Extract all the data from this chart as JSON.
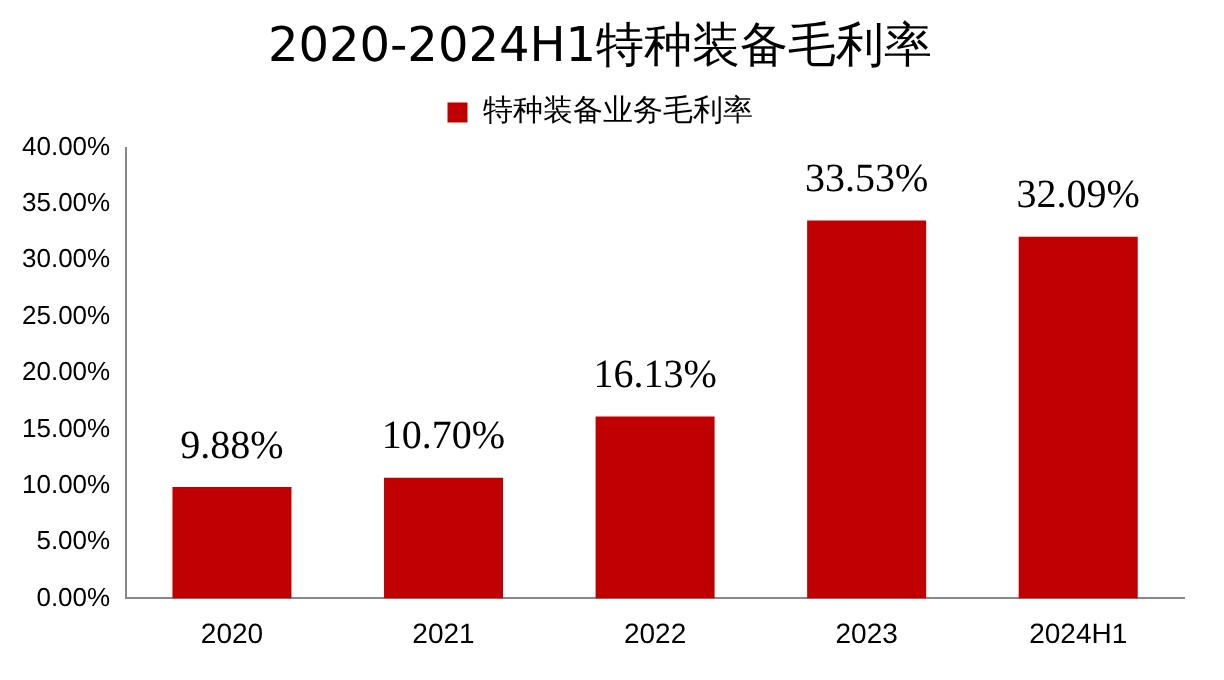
{
  "chart_data": {
    "type": "bar",
    "title": "2020-2024H1特种装备毛利率",
    "categories": [
      "2020",
      "2021",
      "2022",
      "2023",
      "2024H1"
    ],
    "series": [
      {
        "name": "特种装备业务毛利率",
        "color": "#c00000",
        "values": [
          9.88,
          10.7,
          16.13,
          33.53,
          32.09
        ]
      }
    ],
    "value_labels": [
      "9.88%",
      "10.70%",
      "16.13%",
      "33.53%",
      "32.09%"
    ],
    "ylim": [
      0,
      40
    ],
    "yticks": [
      {
        "value": 0,
        "label": "0.00%"
      },
      {
        "value": 5,
        "label": "5.00%"
      },
      {
        "value": 10,
        "label": "10.00%"
      },
      {
        "value": 15,
        "label": "15.00%"
      },
      {
        "value": 20,
        "label": "20.00%"
      },
      {
        "value": 25,
        "label": "25.00%"
      },
      {
        "value": 30,
        "label": "30.00%"
      },
      {
        "value": 35,
        "label": "35.00%"
      },
      {
        "value": 40,
        "label": "40.00%"
      }
    ],
    "grid": false,
    "legend": "top"
  }
}
